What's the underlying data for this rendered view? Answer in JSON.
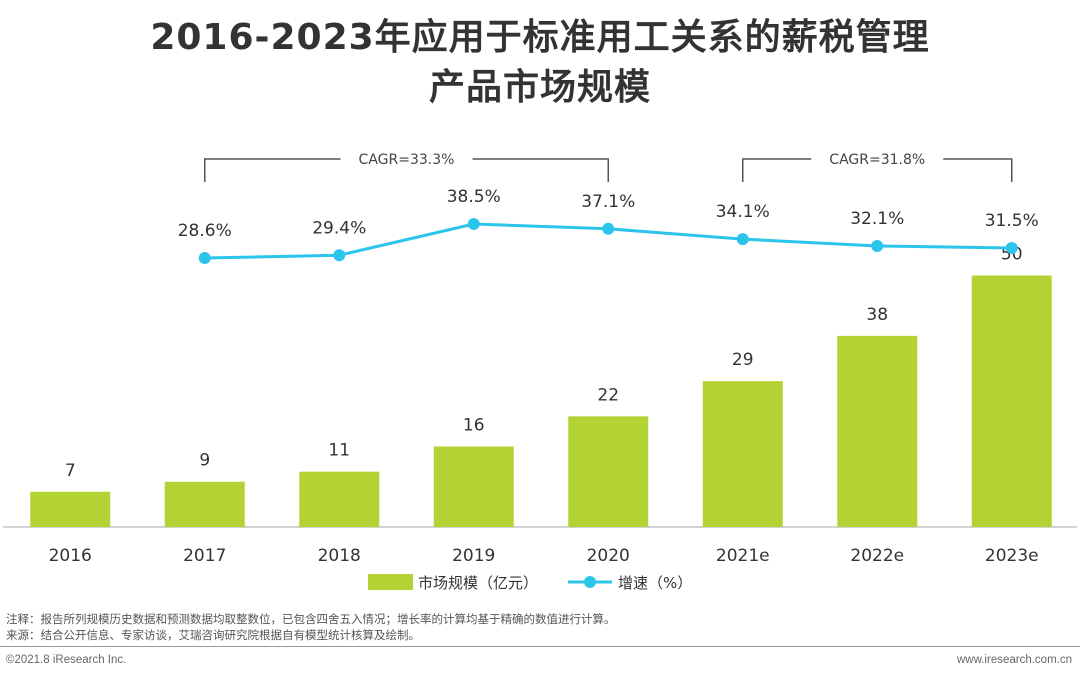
{
  "title": {
    "line1": "2016-2023年应用于标准用工关系的薪税管理",
    "line2": "产品市场规模"
  },
  "chart_data": {
    "type": "bar+line",
    "categories": [
      "2016",
      "2017",
      "2018",
      "2019",
      "2020",
      "2021e",
      "2022e",
      "2023e"
    ],
    "series": [
      {
        "name": "市场规模（亿元）",
        "type": "bar",
        "values": [
          7,
          9,
          11,
          16,
          22,
          29,
          38,
          50
        ],
        "labels": [
          "7",
          "9",
          "11",
          "16",
          "22",
          "29",
          "38",
          "50"
        ],
        "color": "#b3d335"
      },
      {
        "name": "增速（%）",
        "type": "line",
        "values": [
          null,
          28.6,
          29.4,
          38.5,
          37.1,
          34.1,
          32.1,
          31.5
        ],
        "labels": [
          null,
          "28.6%",
          "29.4%",
          "38.5%",
          "37.1%",
          "34.1%",
          "32.1%",
          "31.5%"
        ],
        "color": "#2bc4ea"
      }
    ],
    "annotations": [
      {
        "text": "CAGR=33.3%",
        "from": "2017",
        "to": "2020"
      },
      {
        "text": "CAGR=31.8%",
        "from": "2021e",
        "to": "2023e"
      }
    ],
    "legend": [
      "市场规模（亿元）",
      "增速（%）"
    ],
    "legend_position": "bottom"
  },
  "notes": {
    "note": "注释：报告所列规模历史数据和预测数据均取整数位，已包含四舍五入情况；增长率的计算均基于精确的数值进行计算。",
    "source": "来源：结合公开信息、专家访谈，艾瑞咨询研究院根据自有模型统计核算及绘制。"
  },
  "footer": {
    "copyright": "©2021.8 iResearch Inc.",
    "website": "www.iresearch.com.cn"
  }
}
